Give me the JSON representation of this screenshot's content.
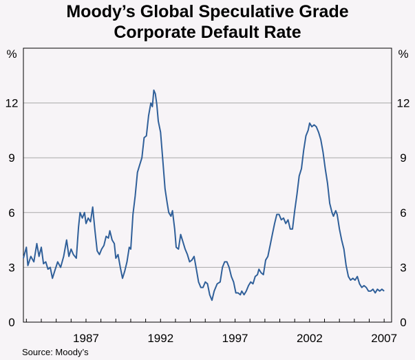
{
  "chart_data": {
    "type": "line",
    "title_lines": [
      "Moody’s Global Speculative Grade",
      "Corporate Default Rate"
    ],
    "y_unit_left": "%",
    "y_unit_right": "%",
    "source": "Source: Moody’s",
    "xlim": [
      1982.8,
      2007.5
    ],
    "ylim": [
      0,
      15
    ],
    "y_ticks": [
      0,
      3,
      6,
      9,
      12
    ],
    "x_ticks": [
      1987,
      1992,
      1997,
      2002,
      2007
    ],
    "grid": true,
    "series": [
      {
        "color": "#2f5f99",
        "points": [
          [
            1982.8,
            3.5
          ],
          [
            1983.0,
            4.1
          ],
          [
            1983.1,
            3.1
          ],
          [
            1983.3,
            3.6
          ],
          [
            1983.5,
            3.3
          ],
          [
            1983.7,
            4.3
          ],
          [
            1983.85,
            3.6
          ],
          [
            1984.0,
            4.1
          ],
          [
            1984.15,
            3.2
          ],
          [
            1984.3,
            3.3
          ],
          [
            1984.45,
            2.9
          ],
          [
            1984.6,
            3.0
          ],
          [
            1984.75,
            2.4
          ],
          [
            1984.9,
            2.8
          ],
          [
            1985.1,
            3.3
          ],
          [
            1985.3,
            3.0
          ],
          [
            1985.5,
            3.6
          ],
          [
            1985.7,
            4.5
          ],
          [
            1985.85,
            3.6
          ],
          [
            1986.0,
            4.0
          ],
          [
            1986.15,
            3.7
          ],
          [
            1986.35,
            3.5
          ],
          [
            1986.5,
            5.2
          ],
          [
            1986.6,
            6.0
          ],
          [
            1986.75,
            5.7
          ],
          [
            1986.9,
            6.0
          ],
          [
            1987.0,
            5.4
          ],
          [
            1987.15,
            5.7
          ],
          [
            1987.3,
            5.5
          ],
          [
            1987.45,
            6.3
          ],
          [
            1987.6,
            5.0
          ],
          [
            1987.75,
            3.9
          ],
          [
            1987.9,
            3.7
          ],
          [
            1988.05,
            4.0
          ],
          [
            1988.2,
            4.2
          ],
          [
            1988.35,
            4.7
          ],
          [
            1988.5,
            4.6
          ],
          [
            1988.6,
            5.0
          ],
          [
            1988.75,
            4.5
          ],
          [
            1988.9,
            4.3
          ],
          [
            1989.0,
            3.5
          ],
          [
            1989.15,
            3.7
          ],
          [
            1989.3,
            3.0
          ],
          [
            1989.45,
            2.4
          ],
          [
            1989.6,
            2.8
          ],
          [
            1989.75,
            3.3
          ],
          [
            1989.9,
            4.1
          ],
          [
            1990.0,
            4.0
          ],
          [
            1990.15,
            5.9
          ],
          [
            1990.3,
            6.9
          ],
          [
            1990.45,
            8.2
          ],
          [
            1990.6,
            8.6
          ],
          [
            1990.75,
            9.0
          ],
          [
            1990.9,
            10.1
          ],
          [
            1991.05,
            10.2
          ],
          [
            1991.2,
            11.3
          ],
          [
            1991.35,
            12.0
          ],
          [
            1991.45,
            11.8
          ],
          [
            1991.55,
            12.7
          ],
          [
            1991.65,
            12.5
          ],
          [
            1991.75,
            11.9
          ],
          [
            1991.85,
            11.0
          ],
          [
            1992.0,
            10.4
          ],
          [
            1992.15,
            8.9
          ],
          [
            1992.3,
            7.3
          ],
          [
            1992.45,
            6.5
          ],
          [
            1992.55,
            6.0
          ],
          [
            1992.7,
            5.8
          ],
          [
            1992.8,
            6.1
          ],
          [
            1992.95,
            5.1
          ],
          [
            1993.05,
            4.1
          ],
          [
            1993.2,
            4.0
          ],
          [
            1993.35,
            4.8
          ],
          [
            1993.5,
            4.4
          ],
          [
            1993.65,
            4.0
          ],
          [
            1993.8,
            3.7
          ],
          [
            1993.95,
            3.3
          ],
          [
            1994.1,
            3.4
          ],
          [
            1994.25,
            3.6
          ],
          [
            1994.4,
            2.9
          ],
          [
            1994.55,
            2.2
          ],
          [
            1994.7,
            1.9
          ],
          [
            1994.85,
            1.9
          ],
          [
            1995.0,
            2.2
          ],
          [
            1995.15,
            2.1
          ],
          [
            1995.3,
            1.5
          ],
          [
            1995.45,
            1.2
          ],
          [
            1995.6,
            1.7
          ],
          [
            1995.8,
            2.1
          ],
          [
            1996.0,
            2.2
          ],
          [
            1996.15,
            3.0
          ],
          [
            1996.3,
            3.3
          ],
          [
            1996.45,
            3.3
          ],
          [
            1996.6,
            3.0
          ],
          [
            1996.75,
            2.5
          ],
          [
            1996.9,
            2.2
          ],
          [
            1997.05,
            1.6
          ],
          [
            1997.2,
            1.6
          ],
          [
            1997.35,
            1.5
          ],
          [
            1997.45,
            1.7
          ],
          [
            1997.6,
            1.5
          ],
          [
            1997.75,
            1.7
          ],
          [
            1997.9,
            2.0
          ],
          [
            1998.05,
            2.2
          ],
          [
            1998.2,
            2.1
          ],
          [
            1998.35,
            2.5
          ],
          [
            1998.5,
            2.6
          ],
          [
            1998.6,
            2.9
          ],
          [
            1998.75,
            2.7
          ],
          [
            1998.9,
            2.6
          ],
          [
            1999.05,
            3.4
          ],
          [
            1999.2,
            3.6
          ],
          [
            1999.35,
            4.2
          ],
          [
            1999.5,
            4.8
          ],
          [
            1999.65,
            5.4
          ],
          [
            1999.8,
            5.9
          ],
          [
            1999.95,
            5.9
          ],
          [
            2000.1,
            5.6
          ],
          [
            2000.25,
            5.7
          ],
          [
            2000.4,
            5.4
          ],
          [
            2000.55,
            5.6
          ],
          [
            2000.7,
            5.1
          ],
          [
            2000.85,
            5.1
          ],
          [
            2001.0,
            6.1
          ],
          [
            2001.15,
            7.0
          ],
          [
            2001.3,
            8.0
          ],
          [
            2001.45,
            8.4
          ],
          [
            2001.6,
            9.4
          ],
          [
            2001.75,
            10.2
          ],
          [
            2001.9,
            10.5
          ],
          [
            2002.0,
            10.9
          ],
          [
            2002.15,
            10.7
          ],
          [
            2002.3,
            10.8
          ],
          [
            2002.45,
            10.7
          ],
          [
            2002.6,
            10.4
          ],
          [
            2002.75,
            10.0
          ],
          [
            2002.9,
            9.3
          ],
          [
            2003.05,
            8.4
          ],
          [
            2003.2,
            7.6
          ],
          [
            2003.35,
            6.5
          ],
          [
            2003.5,
            6.0
          ],
          [
            2003.6,
            5.8
          ],
          [
            2003.75,
            6.1
          ],
          [
            2003.85,
            5.9
          ],
          [
            2004.0,
            5.1
          ],
          [
            2004.15,
            4.5
          ],
          [
            2004.3,
            4.0
          ],
          [
            2004.45,
            3.1
          ],
          [
            2004.6,
            2.5
          ],
          [
            2004.75,
            2.3
          ],
          [
            2004.9,
            2.4
          ],
          [
            2005.05,
            2.3
          ],
          [
            2005.2,
            2.5
          ],
          [
            2005.35,
            2.1
          ],
          [
            2005.5,
            1.9
          ],
          [
            2005.65,
            2.0
          ],
          [
            2005.8,
            1.9
          ],
          [
            2005.95,
            1.7
          ],
          [
            2006.1,
            1.7
          ],
          [
            2006.25,
            1.8
          ],
          [
            2006.4,
            1.6
          ],
          [
            2006.55,
            1.8
          ],
          [
            2006.7,
            1.7
          ],
          [
            2006.85,
            1.8
          ],
          [
            2007.0,
            1.7
          ]
        ]
      }
    ]
  }
}
